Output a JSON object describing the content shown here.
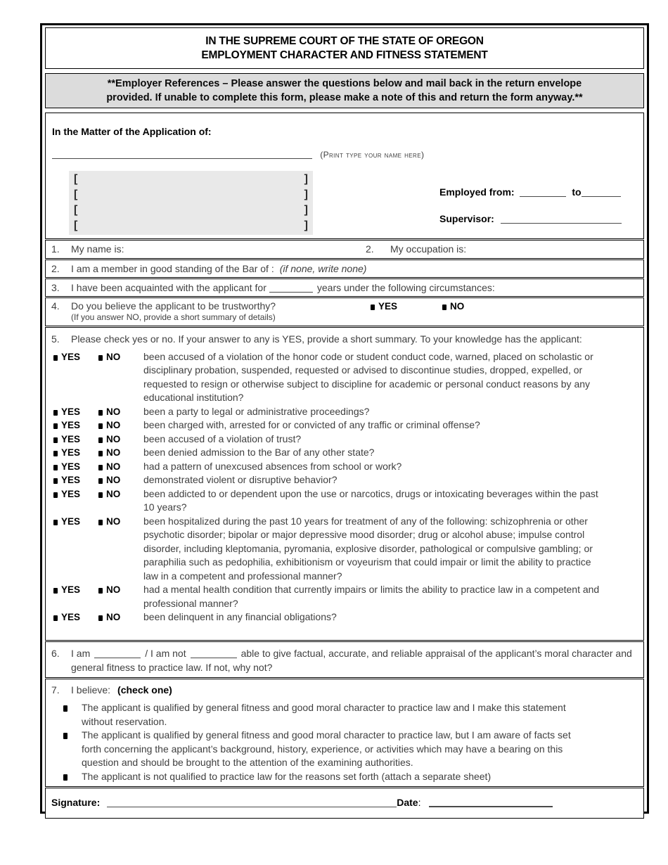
{
  "header": {
    "line1": "IN THE SUPREME COURT OF THE STATE OF OREGON",
    "line2": "EMPLOYMENT CHARACTER AND FITNESS STATEMENT"
  },
  "notice": {
    "line1": "**Employer References – Please answer the questions below and mail back in the return envelope",
    "line2": "provided.  If unable to complete this form, please make a note of this and return the form anyway.**"
  },
  "application": {
    "heading": "In the Matter of the Application of:",
    "name_hint": "(Print type your name here)",
    "bracket_open": "[",
    "bracket_close": "]",
    "bracket_rows": [
      "",
      "",
      "",
      ""
    ],
    "employed_from_label": "Employed from:",
    "to_label": "to",
    "supervisor_label": "Supervisor:"
  },
  "q1": {
    "num": "1.",
    "label": "My name is:",
    "num2": "2.",
    "label2": "My occupation is:"
  },
  "q2": {
    "num": "2.",
    "label": "I am a member in good standing of the Bar of :",
    "hint": "(if none, write none)"
  },
  "q3": {
    "num": "3.",
    "pre": "I have been acquainted with the applicant for",
    "post": "years under the following circumstances:"
  },
  "q4": {
    "num": "4.",
    "label": "Do you believe the applicant to be trustworthy?",
    "yes_label": "YES",
    "no_label": "NO",
    "note": "(If you answer NO, provide a short summary of details)"
  },
  "q5": {
    "num": "5.",
    "intro": "Please check yes or no.  If your answer to any is YES, provide a short summary.  To your knowledge has the applicant:",
    "yes_label": "YES",
    "no_label": "NO",
    "items": [
      "been accused of a violation of the honor code or student conduct code, warned, placed on scholastic or disciplinary probation, suspended, requested or advised to discontinue studies, dropped, expelled, or requested to resign or otherwise subject to discipline for academic or personal conduct reasons by any educational institution?",
      "been a party to legal or administrative proceedings?",
      "been charged with, arrested for or convicted of any traffic or criminal offense?",
      "been accused of a violation of trust?",
      "been denied admission to the Bar of any other state?",
      "had a pattern of unexcused absences from school or work?",
      "demonstrated violent or disruptive behavior?",
      "been addicted to or dependent upon the use or narcotics, drugs or intoxicating beverages within the  past 10 years?",
      "been hospitalized during the past 10 years for treatment of any of the following: schizophrenia or other psychotic disorder; bipolar or major depressive mood disorder; drug or alcohol abuse; impulse control disorder, including kleptomania, pyromania, explosive disorder, pathological or compulsive gambling; or paraphilia such as pedophilia, exhibitionism or voyeurism that could impair or limit the ability to practice law in a competent and professional manner?",
      "had a mental health condition that currently impairs or limits the ability to practice law in a competent and professional manner?",
      "been delinquent in any financial obligations?"
    ]
  },
  "q6": {
    "num": "6.",
    "part1": "I am",
    "part2": "/ I am not",
    "part3": "able to give factual, accurate, and reliable appraisal of the applicant’s moral character and general fitness to practice law.  If not, why not?"
  },
  "q7": {
    "num": "7.",
    "label": "I believe:",
    "check_one": "(check one)",
    "options": [
      "The applicant is qualified by general fitness and good moral character to practice law and I make this statement without reservation.",
      "The applicant is qualified by general fitness and good moral character to practice law, but I am aware of facts set forth concerning the applicant’s background, history, experience, or activities which may have a bearing on this question and should be brought to the attention of the examining authorities.",
      "The applicant is not qualified to practice law for the reasons set forth (attach a separate sheet)"
    ]
  },
  "signature": {
    "label": "Signature:",
    "date_label": "Date",
    "date_colon": ":"
  },
  "colors": {
    "notice_bg": "#dcdcdc",
    "bracket_bg": "#e9e9e9",
    "border": "#000000",
    "text": "#3f3f3f"
  }
}
